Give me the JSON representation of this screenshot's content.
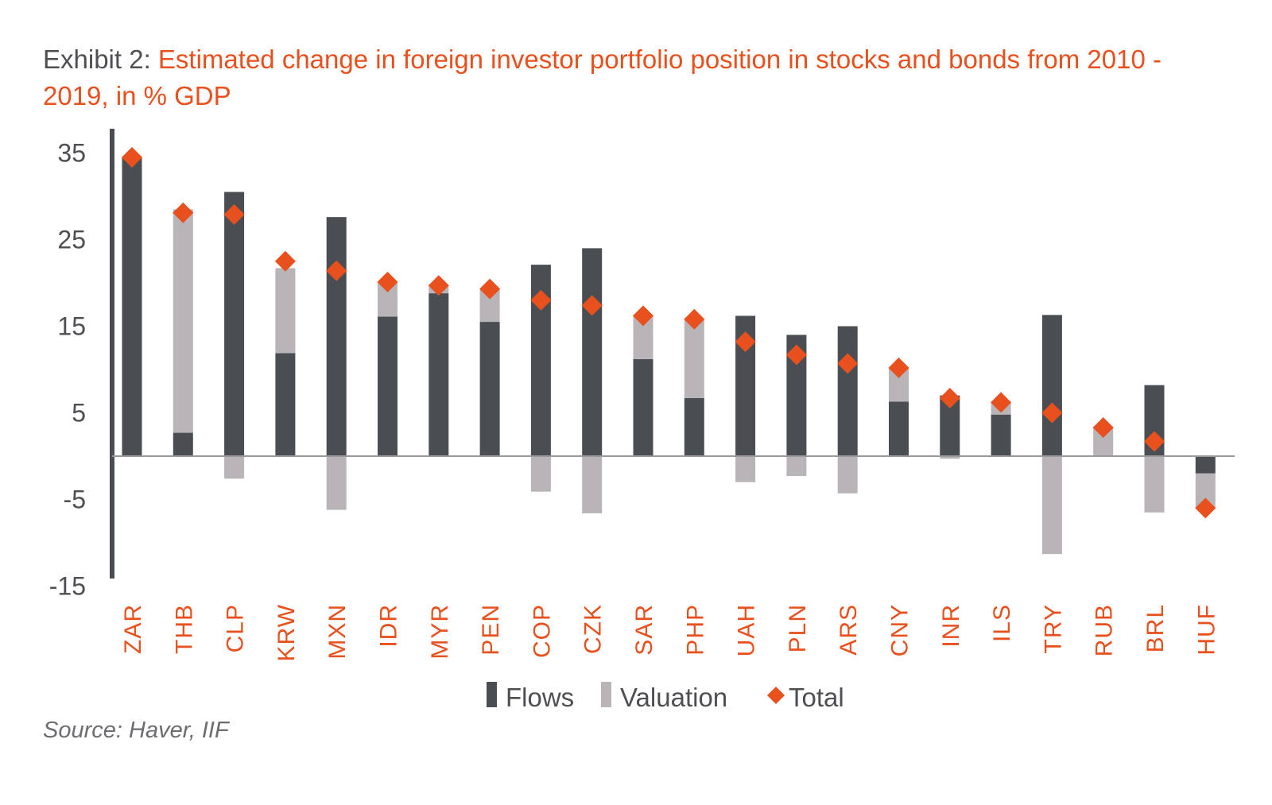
{
  "title": {
    "prefix": "Exhibit 2:",
    "text": "Estimated change in foreign investor portfolio position in stocks and bonds from 2010 - 2019, in % GDP"
  },
  "source": "Source: Haver, IIF",
  "colors": {
    "flows": "#4a4e52",
    "valuation": "#b8b4b8",
    "total": "#e8501e",
    "axis": "#9a9a9a",
    "label": "#e8501e"
  },
  "chart_data": {
    "type": "bar",
    "stacked": true,
    "categories": [
      "ZAR",
      "THB",
      "CLP",
      "KRW",
      "MXN",
      "IDR",
      "MYR",
      "PEN",
      "COP",
      "CZK",
      "SAR",
      "PHP",
      "UAH",
      "PLN",
      "ARS",
      "CNY",
      "INR",
      "ILS",
      "TRY",
      "RUB",
      "BRL",
      "HUF"
    ],
    "series": [
      {
        "name": "Flows",
        "kind": "bar",
        "values": [
          34.5,
          2.7,
          30.5,
          11.9,
          27.6,
          16.1,
          18.8,
          15.5,
          22.1,
          24.0,
          11.2,
          6.7,
          16.2,
          14.0,
          15.0,
          6.3,
          7.0,
          4.8,
          16.3,
          0.0,
          8.2,
          -2.0
        ]
      },
      {
        "name": "Valuation",
        "kind": "bar",
        "values": [
          0.0,
          25.8,
          -2.6,
          9.8,
          -6.2,
          4.0,
          0.9,
          3.7,
          -4.1,
          -6.6,
          5.0,
          9.0,
          -3.0,
          -2.3,
          -4.3,
          3.8,
          -0.3,
          1.4,
          -11.3,
          3.3,
          -6.5,
          -4.0
        ]
      },
      {
        "name": "Total",
        "kind": "marker",
        "values": [
          34.5,
          28.1,
          27.9,
          22.5,
          21.4,
          20.1,
          19.7,
          19.3,
          18.0,
          17.4,
          16.2,
          15.8,
          13.2,
          11.7,
          10.7,
          10.2,
          6.7,
          6.2,
          5.0,
          3.3,
          1.7,
          -6.0
        ]
      }
    ],
    "yticks": [
      "35",
      "25",
      "15",
      "5",
      "-5",
      "-15"
    ],
    "ylim": [
      -15,
      38
    ],
    "legend": {
      "position": "bottom",
      "entries": [
        "Flows",
        "Valuation",
        "Total"
      ]
    }
  }
}
